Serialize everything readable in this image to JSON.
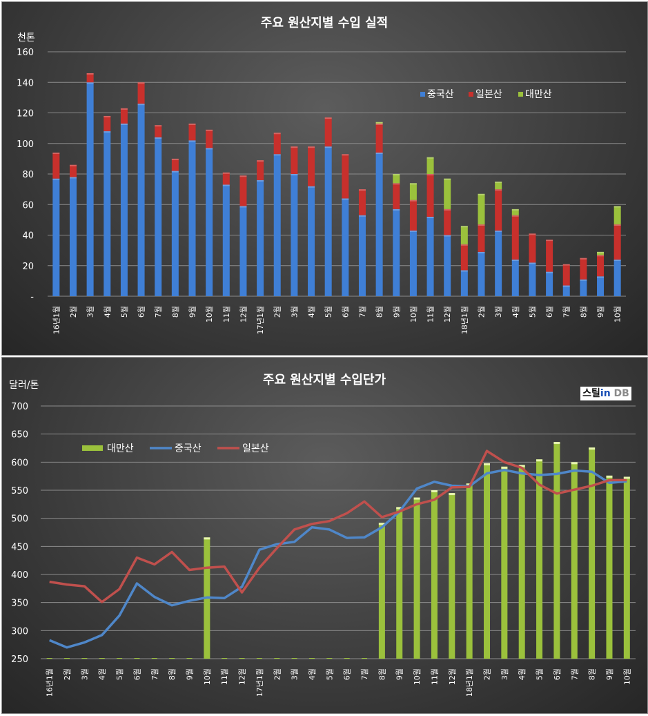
{
  "chart_data": [
    {
      "type": "bar",
      "stacked": true,
      "title": "주요 원산지별 수입 실적",
      "unit_label": "천톤",
      "ylim": [
        0,
        160
      ],
      "yticks": [
        "-",
        "20",
        "40",
        "60",
        "80",
        "100",
        "120",
        "140",
        "160"
      ],
      "categories": [
        "16년1월",
        "2월",
        "3월",
        "4월",
        "5월",
        "6월",
        "7월",
        "8월",
        "9월",
        "10월",
        "11월",
        "12월",
        "17년1월",
        "2월",
        "3월",
        "4월",
        "5월",
        "6월",
        "7월",
        "8월",
        "9월",
        "10월",
        "11월",
        "12월",
        "18년1월",
        "2월",
        "3월",
        "4월",
        "5월",
        "6월",
        "7월",
        "8월",
        "9월",
        "10월"
      ],
      "series": [
        {
          "name": "중국산",
          "color": "#3f7fd6",
          "values": [
            77,
            78,
            140,
            108,
            113,
            126,
            104,
            82,
            102,
            97,
            73,
            59,
            76,
            93,
            80,
            72,
            98,
            64,
            53,
            94,
            57,
            43,
            52,
            40,
            17,
            29,
            43,
            24,
            22,
            16,
            7,
            11,
            13,
            24
          ]
        },
        {
          "name": "일본산",
          "color": "#c8302c",
          "values": [
            17,
            8,
            6,
            10,
            10,
            14,
            8,
            8,
            11,
            12,
            8,
            20,
            13,
            14,
            18,
            26,
            19,
            29,
            17,
            19,
            17,
            20,
            28,
            17,
            17,
            18,
            27,
            29,
            19,
            21,
            14,
            14,
            14,
            23
          ]
        },
        {
          "name": "대만산",
          "color": "#9bc13c",
          "values": [
            0,
            0,
            0,
            0,
            0,
            0,
            0,
            0,
            0,
            0,
            0,
            0,
            0,
            0,
            0,
            0,
            0,
            0,
            0,
            1,
            6,
            11,
            11,
            20,
            12,
            20,
            5,
            4,
            0,
            0,
            0,
            0,
            2,
            12
          ]
        }
      ],
      "legend_position": "top-right",
      "grid": true
    },
    {
      "type": "bar+line",
      "title": "주요 원산지별 수입단가",
      "unit_label": "달러/톤",
      "ylim": [
        250,
        700
      ],
      "yticks": [
        "250",
        "300",
        "350",
        "400",
        "450",
        "500",
        "550",
        "600",
        "650",
        "700"
      ],
      "categories": [
        "16년1월",
        "2월",
        "3월",
        "4월",
        "5월",
        "6월",
        "7월",
        "8월",
        "9월",
        "10월",
        "11월",
        "12월",
        "17년1월",
        "2월",
        "3월",
        "4월",
        "5월",
        "6월",
        "7월",
        "8월",
        "9월",
        "10월",
        "11월",
        "12월",
        "18년1월",
        "2월",
        "3월",
        "4월",
        "5월",
        "6월",
        "7월",
        "8월",
        "9월",
        "10월"
      ],
      "bar_series": {
        "name": "대만산",
        "color": "#9bc13c",
        "values": [
          0,
          0,
          0,
          0,
          0,
          0,
          0,
          0,
          0,
          466,
          0,
          0,
          0,
          0,
          0,
          0,
          0,
          0,
          0,
          492,
          520,
          537,
          550,
          545,
          562,
          598,
          592,
          595,
          605,
          636,
          600,
          626,
          576,
          574
        ]
      },
      "line_series": [
        {
          "name": "중국산",
          "color": "#4f87c9",
          "values": [
            283,
            270,
            279,
            292,
            327,
            384,
            360,
            345,
            353,
            359,
            358,
            378,
            444,
            454,
            458,
            484,
            480,
            465,
            466,
            484,
            512,
            553,
            565,
            558,
            557,
            580,
            586,
            580,
            577,
            579,
            585,
            583,
            563,
            566
          ]
        },
        {
          "name": "일본산",
          "color": "#c0504d",
          "values": [
            387,
            382,
            379,
            351,
            374,
            430,
            418,
            440,
            408,
            412,
            414,
            368,
            412,
            447,
            480,
            490,
            495,
            509,
            530,
            502,
            512,
            525,
            533,
            555,
            556,
            620,
            600,
            590,
            560,
            544,
            551,
            558,
            568,
            568
          ]
        }
      ],
      "legend_position": "top-left",
      "grid": true
    }
  ],
  "logo": {
    "part1": "스틸",
    "part2": "in",
    "part3": " DB"
  }
}
